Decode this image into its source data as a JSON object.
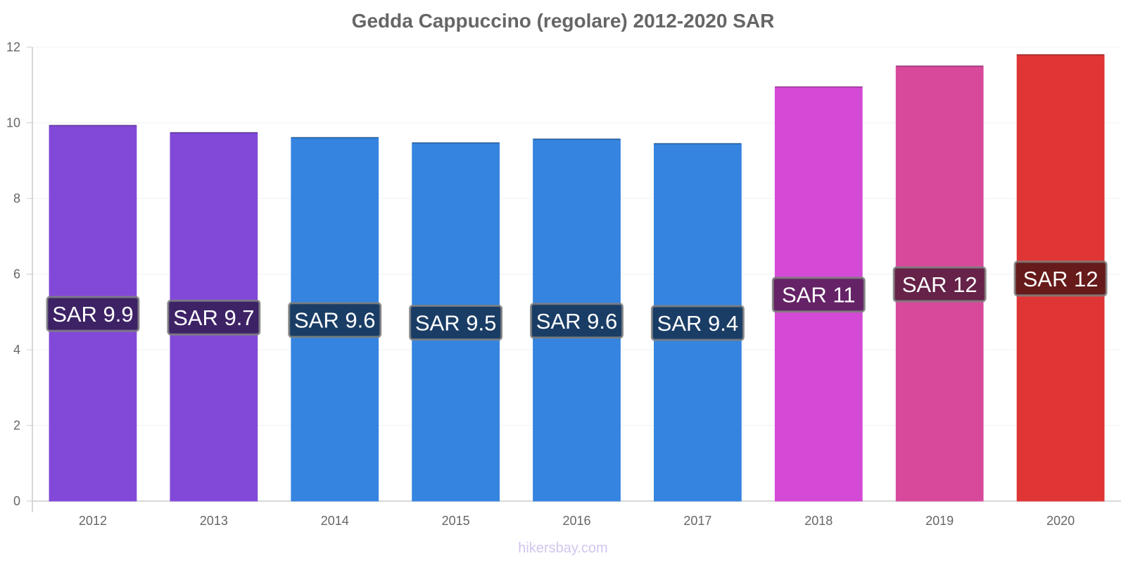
{
  "chart_data": {
    "type": "bar",
    "title": "Gedda Cappuccino (regolare) 2012-2020 SAR",
    "xlabel": "",
    "ylabel": "",
    "ylim": [
      0,
      12
    ],
    "yticks": [
      "0",
      "2",
      "4",
      "6",
      "8",
      "10",
      "12"
    ],
    "grid": true,
    "legend": "none",
    "categories": [
      "2012",
      "2013",
      "2014",
      "2015",
      "2016",
      "2017",
      "2018",
      "2019",
      "2020"
    ],
    "values": [
      9.93,
      9.74,
      9.61,
      9.47,
      9.57,
      9.45,
      10.95,
      11.5,
      11.8
    ],
    "data_labels": [
      "SAR 9.9",
      "SAR 9.7",
      "SAR 9.6",
      "SAR 9.5",
      "SAR 9.6",
      "SAR 9.4",
      "SAR 11",
      "SAR 12",
      "SAR 12"
    ],
    "bar_colors": [
      "#8249d8",
      "#8249d8",
      "#3584df",
      "#3584df",
      "#3584df",
      "#3584df",
      "#d449d5",
      "#d8499c",
      "#e03535"
    ],
    "label_box_colors": [
      "#3d2266",
      "#3d2266",
      "#1a3d66",
      "#1a3d66",
      "#1a3d66",
      "#1a3d66",
      "#652266",
      "#662248",
      "#661a1a"
    ]
  },
  "watermark": "hikersbay.com"
}
